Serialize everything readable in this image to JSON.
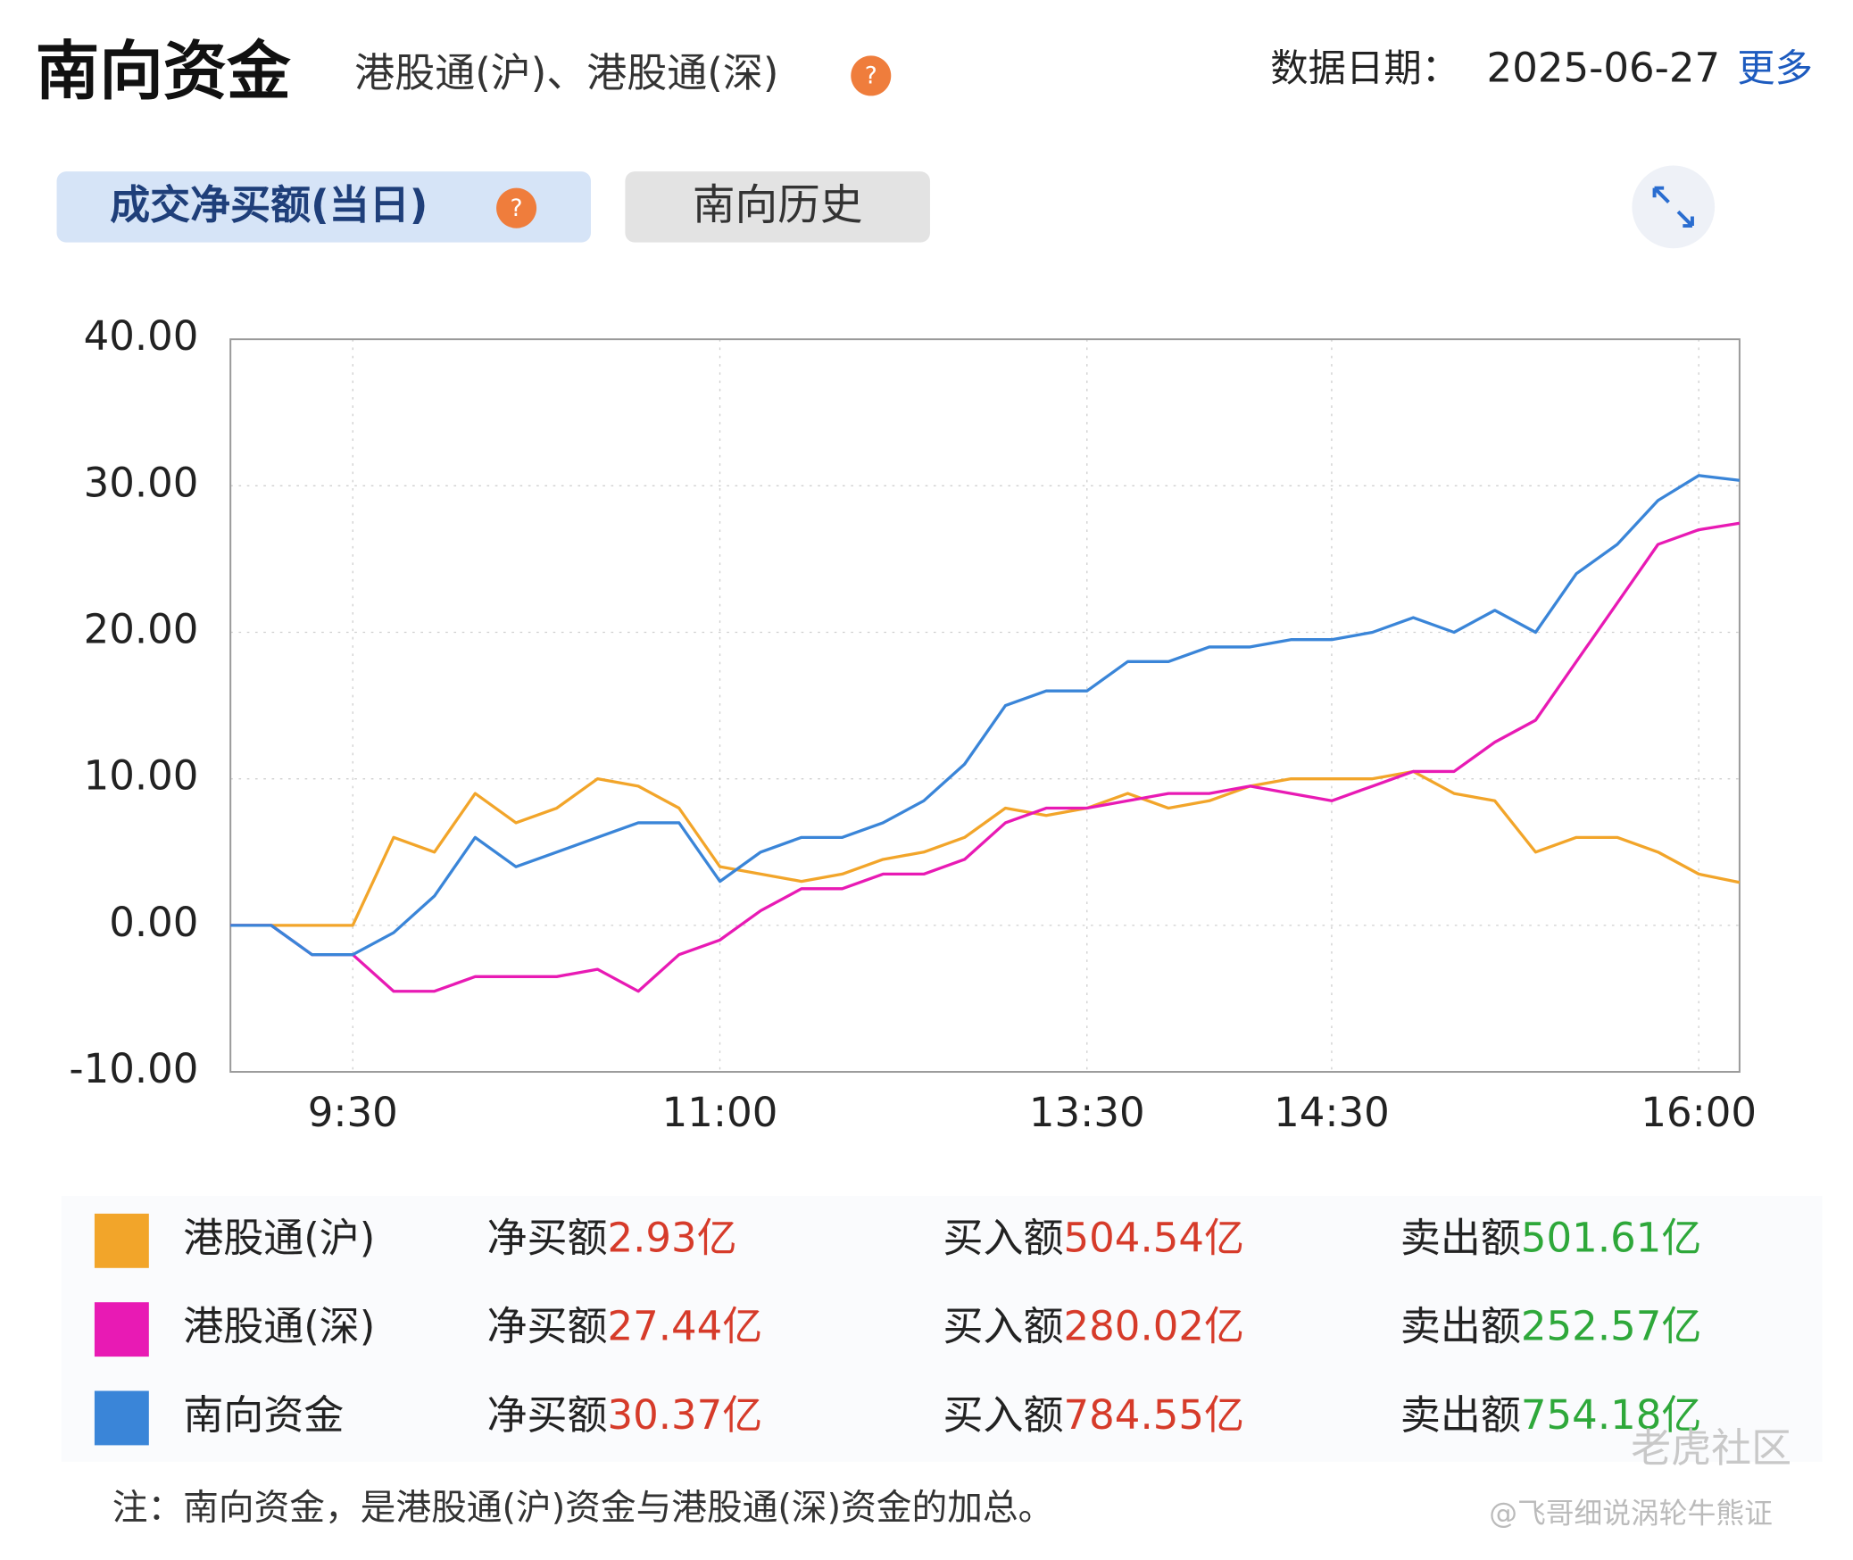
{
  "header": {
    "title": "南向资金",
    "subtitle": "港股通(沪)、港股通(深)",
    "help": "?",
    "date_label": "数据日期：",
    "date": "2025-06-27",
    "more": "更多"
  },
  "tabs": [
    "成交净买额(当日)",
    "南向历史"
  ],
  "chart_data": {
    "type": "line",
    "categories": [
      null,
      null,
      null,
      "9:30",
      null,
      null,
      null,
      null,
      null,
      null,
      null,
      null,
      "11:00",
      null,
      null,
      null,
      null,
      null,
      null,
      null,
      null,
      "13:30",
      null,
      null,
      null,
      null,
      null,
      "14:30",
      null,
      null,
      null,
      null,
      null,
      null,
      null,
      null,
      "16:00",
      null
    ],
    "ylim": [
      -10,
      40
    ],
    "yticks": [
      {
        "value": -10,
        "label": "-10.00"
      },
      {
        "value": 0,
        "label": "0.00"
      },
      {
        "value": 10,
        "label": "10.00"
      },
      {
        "value": 20,
        "label": "20.00"
      },
      {
        "value": 30,
        "label": "30.00"
      },
      {
        "value": 40,
        "label": "40.00"
      }
    ],
    "grid": true,
    "series": [
      {
        "name": "港股通(沪)",
        "color": "#f2a52a",
        "values": [
          0,
          0,
          0,
          0,
          6,
          5,
          9,
          7,
          8,
          10,
          9.5,
          8,
          4,
          3.5,
          3,
          3.5,
          4.5,
          5,
          6,
          8,
          7.5,
          8,
          9,
          8,
          8.5,
          9.5,
          10,
          10,
          10,
          10.5,
          9,
          8.5,
          5,
          6,
          6,
          5,
          3.5,
          2.93
        ]
      },
      {
        "name": "港股通(深)",
        "color": "#e81ab4",
        "values": [
          0,
          0,
          -2,
          -2,
          -4.5,
          -4.5,
          -3.5,
          -3.5,
          -3.5,
          -3,
          -4.5,
          -2,
          -1,
          1,
          2.5,
          2.5,
          3.5,
          3.5,
          4.5,
          7,
          8,
          8,
          8.5,
          9,
          9,
          9.5,
          9,
          8.5,
          9.5,
          10.5,
          10.5,
          12.5,
          14,
          18,
          22,
          26,
          27,
          27.44
        ]
      },
      {
        "name": "南向资金",
        "color": "#3a85d8",
        "values": [
          0,
          0,
          -2,
          -2,
          -0.5,
          2,
          6,
          4,
          5,
          6,
          7,
          7,
          3,
          5,
          6,
          6,
          7,
          8.5,
          11,
          15,
          16,
          16,
          18,
          18,
          19,
          19,
          19.5,
          19.5,
          20,
          21,
          20,
          21.5,
          20,
          24,
          26,
          29,
          30.7,
          30.37
        ]
      }
    ]
  },
  "summary": {
    "rows": [
      {
        "net_label": "净买额",
        "net": "2.93亿",
        "buy_label": "买入额",
        "buy": "504.54亿",
        "sell_label": "卖出额",
        "sell": "501.61亿"
      },
      {
        "net_label": "净买额",
        "net": "27.44亿",
        "buy_label": "买入额",
        "buy": "280.02亿",
        "sell_label": "卖出额",
        "sell": "252.57亿"
      },
      {
        "net_label": "净买额",
        "net": "30.37亿",
        "buy_label": "买入额",
        "buy": "784.55亿",
        "sell_label": "卖出额",
        "sell": "754.18亿"
      }
    ]
  },
  "note": "注：南向资金，是港股通(沪)资金与港股通(深)资金的加总。",
  "watermark": {
    "brand": "老虎社区",
    "author": "@飞哥细说涡轮牛熊证"
  }
}
